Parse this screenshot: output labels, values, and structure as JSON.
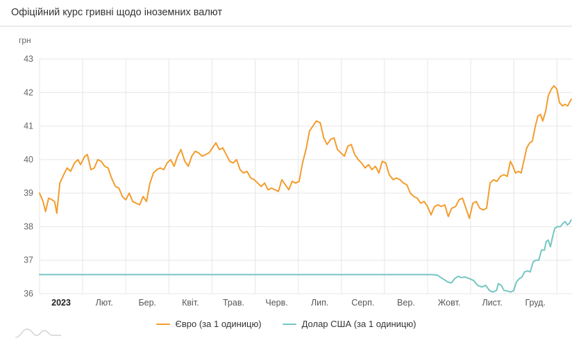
{
  "header": {
    "title": "Офіційний курс гривні щодо іноземних валют"
  },
  "chart_data": {
    "type": "line",
    "title": "Офіційний курс гривні щодо іноземних валют",
    "y_unit": "грн",
    "ylabel": "грн",
    "xlabel": "",
    "ylim": [
      36,
      43
    ],
    "y_ticks": [
      36,
      37,
      38,
      39,
      40,
      41,
      42,
      43
    ],
    "x_month_labels": [
      "2023",
      "Лют.",
      "Бер.",
      "Квіт.",
      "Трав.",
      "Черв.",
      "Лип.",
      "Серп.",
      "Вер.",
      "Жовт.",
      "Лист.",
      "Груд."
    ],
    "x_domain_months": [
      0,
      12.35
    ],
    "grid": true,
    "legend_position": "bottom",
    "series": [
      {
        "name": "Євро (за 1 одиницю)",
        "color": "#f39c2d",
        "points": [
          [
            0.0,
            39.0
          ],
          [
            0.08,
            38.75
          ],
          [
            0.14,
            38.45
          ],
          [
            0.21,
            38.85
          ],
          [
            0.29,
            38.8
          ],
          [
            0.35,
            38.75
          ],
          [
            0.4,
            38.4
          ],
          [
            0.47,
            39.3
          ],
          [
            0.56,
            39.55
          ],
          [
            0.64,
            39.75
          ],
          [
            0.72,
            39.65
          ],
          [
            0.81,
            39.9
          ],
          [
            0.89,
            40.0
          ],
          [
            0.95,
            39.85
          ],
          [
            1.05,
            40.1
          ],
          [
            1.11,
            40.15
          ],
          [
            1.19,
            39.7
          ],
          [
            1.27,
            39.75
          ],
          [
            1.35,
            40.0
          ],
          [
            1.43,
            39.95
          ],
          [
            1.51,
            39.8
          ],
          [
            1.59,
            39.75
          ],
          [
            1.67,
            39.45
          ],
          [
            1.76,
            39.2
          ],
          [
            1.84,
            39.15
          ],
          [
            1.92,
            38.9
          ],
          [
            2.0,
            38.8
          ],
          [
            2.08,
            39.0
          ],
          [
            2.16,
            38.75
          ],
          [
            2.24,
            38.7
          ],
          [
            2.32,
            38.65
          ],
          [
            2.4,
            38.9
          ],
          [
            2.48,
            38.75
          ],
          [
            2.56,
            39.3
          ],
          [
            2.64,
            39.6
          ],
          [
            2.72,
            39.7
          ],
          [
            2.8,
            39.75
          ],
          [
            2.88,
            39.7
          ],
          [
            2.96,
            39.9
          ],
          [
            3.04,
            40.0
          ],
          [
            3.12,
            39.8
          ],
          [
            3.2,
            40.1
          ],
          [
            3.28,
            40.3
          ],
          [
            3.37,
            39.95
          ],
          [
            3.45,
            39.8
          ],
          [
            3.53,
            40.1
          ],
          [
            3.61,
            40.25
          ],
          [
            3.69,
            40.2
          ],
          [
            3.77,
            40.1
          ],
          [
            3.85,
            40.15
          ],
          [
            3.93,
            40.2
          ],
          [
            4.01,
            40.35
          ],
          [
            4.09,
            40.5
          ],
          [
            4.17,
            40.3
          ],
          [
            4.25,
            40.35
          ],
          [
            4.33,
            40.15
          ],
          [
            4.41,
            39.95
          ],
          [
            4.49,
            39.9
          ],
          [
            4.57,
            40.0
          ],
          [
            4.65,
            39.7
          ],
          [
            4.73,
            39.6
          ],
          [
            4.81,
            39.65
          ],
          [
            4.9,
            39.45
          ],
          [
            4.98,
            39.4
          ],
          [
            5.06,
            39.3
          ],
          [
            5.14,
            39.2
          ],
          [
            5.22,
            39.3
          ],
          [
            5.3,
            39.1
          ],
          [
            5.38,
            39.15
          ],
          [
            5.46,
            39.1
          ],
          [
            5.54,
            39.05
          ],
          [
            5.62,
            39.4
          ],
          [
            5.7,
            39.25
          ],
          [
            5.78,
            39.1
          ],
          [
            5.86,
            39.35
          ],
          [
            5.94,
            39.3
          ],
          [
            6.02,
            39.35
          ],
          [
            6.1,
            39.9
          ],
          [
            6.18,
            40.3
          ],
          [
            6.26,
            40.85
          ],
          [
            6.34,
            41.0
          ],
          [
            6.42,
            41.15
          ],
          [
            6.51,
            41.1
          ],
          [
            6.59,
            40.65
          ],
          [
            6.67,
            40.45
          ],
          [
            6.75,
            40.6
          ],
          [
            6.83,
            40.65
          ],
          [
            6.91,
            40.3
          ],
          [
            6.99,
            40.2
          ],
          [
            7.07,
            40.1
          ],
          [
            7.15,
            40.4
          ],
          [
            7.23,
            40.45
          ],
          [
            7.31,
            40.15
          ],
          [
            7.39,
            40.0
          ],
          [
            7.47,
            39.9
          ],
          [
            7.55,
            39.75
          ],
          [
            7.63,
            39.85
          ],
          [
            7.71,
            39.7
          ],
          [
            7.79,
            39.8
          ],
          [
            7.87,
            39.6
          ],
          [
            7.95,
            39.95
          ],
          [
            8.03,
            39.9
          ],
          [
            8.11,
            39.55
          ],
          [
            8.2,
            39.4
          ],
          [
            8.28,
            39.45
          ],
          [
            8.36,
            39.4
          ],
          [
            8.44,
            39.3
          ],
          [
            8.52,
            39.25
          ],
          [
            8.6,
            39.0
          ],
          [
            8.68,
            38.9
          ],
          [
            8.76,
            38.85
          ],
          [
            8.84,
            38.7
          ],
          [
            8.92,
            38.75
          ],
          [
            9.0,
            38.6
          ],
          [
            9.08,
            38.35
          ],
          [
            9.16,
            38.6
          ],
          [
            9.24,
            38.65
          ],
          [
            9.32,
            38.6
          ],
          [
            9.4,
            38.65
          ],
          [
            9.48,
            38.3
          ],
          [
            9.56,
            38.55
          ],
          [
            9.65,
            38.6
          ],
          [
            9.73,
            38.8
          ],
          [
            9.81,
            38.85
          ],
          [
            9.89,
            38.55
          ],
          [
            9.97,
            38.25
          ],
          [
            10.05,
            38.7
          ],
          [
            10.13,
            38.75
          ],
          [
            10.21,
            38.55
          ],
          [
            10.29,
            38.5
          ],
          [
            10.37,
            38.55
          ],
          [
            10.45,
            39.3
          ],
          [
            10.53,
            39.4
          ],
          [
            10.61,
            39.35
          ],
          [
            10.69,
            39.5
          ],
          [
            10.77,
            39.55
          ],
          [
            10.85,
            39.5
          ],
          [
            10.92,
            39.95
          ],
          [
            10.98,
            39.8
          ],
          [
            11.04,
            39.6
          ],
          [
            11.11,
            39.65
          ],
          [
            11.17,
            39.6
          ],
          [
            11.24,
            40.0
          ],
          [
            11.3,
            40.35
          ],
          [
            11.37,
            40.5
          ],
          [
            11.43,
            40.55
          ],
          [
            11.5,
            41.0
          ],
          [
            11.56,
            41.3
          ],
          [
            11.62,
            41.35
          ],
          [
            11.67,
            41.15
          ],
          [
            11.74,
            41.45
          ],
          [
            11.8,
            41.9
          ],
          [
            11.87,
            42.1
          ],
          [
            11.93,
            42.2
          ],
          [
            12.0,
            42.1
          ],
          [
            12.06,
            41.7
          ],
          [
            12.13,
            41.6
          ],
          [
            12.19,
            41.65
          ],
          [
            12.25,
            41.6
          ],
          [
            12.33,
            41.8
          ]
        ]
      },
      {
        "name": "Долар США (за 1 одиницю)",
        "color": "#74c6c2",
        "points": [
          [
            0.0,
            36.57
          ],
          [
            2.0,
            36.57
          ],
          [
            4.0,
            36.57
          ],
          [
            6.0,
            36.57
          ],
          [
            8.0,
            36.57
          ],
          [
            9.1,
            36.57
          ],
          [
            9.23,
            36.55
          ],
          [
            9.35,
            36.45
          ],
          [
            9.47,
            36.35
          ],
          [
            9.55,
            36.32
          ],
          [
            9.63,
            36.45
          ],
          [
            9.71,
            36.52
          ],
          [
            9.79,
            36.48
          ],
          [
            9.87,
            36.5
          ],
          [
            9.97,
            36.45
          ],
          [
            10.06,
            36.4
          ],
          [
            10.16,
            36.25
          ],
          [
            10.26,
            36.2
          ],
          [
            10.35,
            36.25
          ],
          [
            10.43,
            36.1
          ],
          [
            10.51,
            36.05
          ],
          [
            10.6,
            36.1
          ],
          [
            10.64,
            36.3
          ],
          [
            10.71,
            36.25
          ],
          [
            10.77,
            36.1
          ],
          [
            10.85,
            36.08
          ],
          [
            10.93,
            36.05
          ],
          [
            11.0,
            36.1
          ],
          [
            11.06,
            36.35
          ],
          [
            11.13,
            36.45
          ],
          [
            11.19,
            36.5
          ],
          [
            11.25,
            36.65
          ],
          [
            11.32,
            36.68
          ],
          [
            11.38,
            36.65
          ],
          [
            11.45,
            36.95
          ],
          [
            11.51,
            37.0
          ],
          [
            11.58,
            37.0
          ],
          [
            11.64,
            37.3
          ],
          [
            11.71,
            37.3
          ],
          [
            11.75,
            37.55
          ],
          [
            11.8,
            37.6
          ],
          [
            11.85,
            37.4
          ],
          [
            11.9,
            37.7
          ],
          [
            11.95,
            37.95
          ],
          [
            12.01,
            38.0
          ],
          [
            12.08,
            38.0
          ],
          [
            12.14,
            38.1
          ],
          [
            12.19,
            38.15
          ],
          [
            12.24,
            38.05
          ],
          [
            12.29,
            38.1
          ],
          [
            12.33,
            38.2
          ]
        ]
      }
    ],
    "axis": {
      "grid_color": "#e6e6e6",
      "tick_label_color": "#666666",
      "month_label_color": "#555555",
      "first_month_label_bold": true
    }
  }
}
